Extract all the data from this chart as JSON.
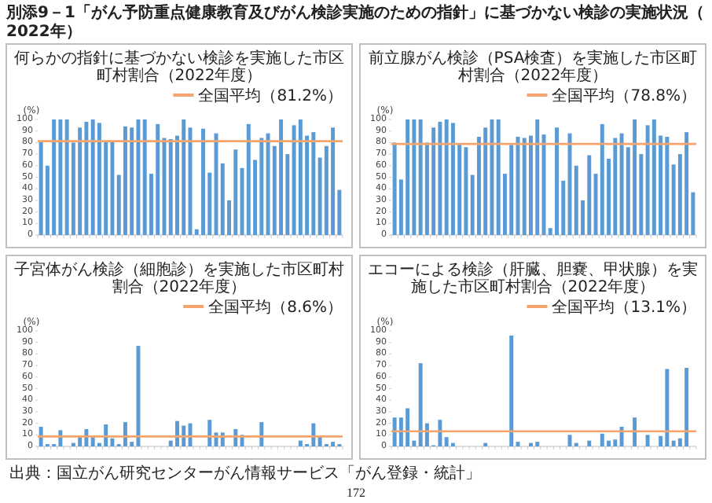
{
  "chart_data": [
    {
      "type": "bar",
      "title": "何らかの指針に基づかない検診を実施した市区町村割合（2022年度）",
      "ylabel": "(%)",
      "color": "#5b9bd5",
      "legend": "top right",
      "annotations": [
        "別添9－1「がん予防重点健康教育及びがん検診実施のための指針」に基づかない検診の実施状況（2022年）",
        "出典：国立がん研究センターがん情報サービス「がん登録・統計」",
        "172"
      ],
      "categories": [
        null,
        null,
        null,
        null,
        null,
        null,
        null,
        null,
        null,
        null,
        null,
        null,
        null,
        null,
        null,
        null,
        null,
        null,
        null,
        null,
        null,
        null,
        null,
        null,
        null,
        null,
        null,
        null,
        null,
        null,
        null,
        null,
        null,
        null,
        null,
        null,
        null,
        null,
        null,
        null,
        null,
        null,
        null,
        null,
        null,
        null,
        null
      ],
      "values": [
        81,
        60,
        100,
        100,
        100,
        80,
        93,
        98,
        100,
        97,
        81,
        81,
        52,
        94,
        93,
        100,
        100,
        53,
        96,
        84,
        83,
        86,
        100,
        93,
        5,
        92,
        54,
        88,
        62,
        30,
        74,
        58,
        96,
        65,
        84,
        88,
        77,
        100,
        70,
        95,
        100,
        86,
        89,
        67,
        77,
        93,
        39
      ],
      "ylim": [
        0,
        100
      ],
      "yticks": [
        0,
        10,
        20,
        30,
        40,
        50,
        60,
        70,
        80,
        90,
        100
      ],
      "ref_lines": [
        {
          "axis": "y",
          "value": 81.2,
          "label": "全国平均（81.2%）",
          "color": "#f6a46b"
        }
      ]
    },
    {
      "type": "bar",
      "title": "前立腺がん検診（PSA検査）を実施した市区町村割合（2022年度）",
      "ylabel": "(%)",
      "color": "#5b9bd5",
      "legend": "top right",
      "categories": [
        null,
        null,
        null,
        null,
        null,
        null,
        null,
        null,
        null,
        null,
        null,
        null,
        null,
        null,
        null,
        null,
        null,
        null,
        null,
        null,
        null,
        null,
        null,
        null,
        null,
        null,
        null,
        null,
        null,
        null,
        null,
        null,
        null,
        null,
        null,
        null,
        null,
        null,
        null,
        null,
        null,
        null,
        null,
        null,
        null,
        null,
        null
      ],
      "values": [
        80,
        48,
        100,
        100,
        100,
        80,
        93,
        98,
        100,
        97,
        79,
        76,
        52,
        85,
        93,
        100,
        100,
        53,
        78,
        85,
        84,
        86,
        100,
        87,
        6,
        93,
        47,
        88,
        60,
        30,
        69,
        53,
        96,
        66,
        84,
        88,
        76,
        100,
        70,
        95,
        100,
        86,
        85,
        61,
        70,
        89,
        37
      ],
      "ylim": [
        0,
        100
      ],
      "yticks": [
        0,
        10,
        20,
        30,
        40,
        50,
        60,
        70,
        80,
        90,
        100
      ],
      "ref_lines": [
        {
          "axis": "y",
          "value": 78.8,
          "label": "全国平均（78.8%）",
          "color": "#f6a46b"
        }
      ]
    },
    {
      "type": "bar",
      "title": "子宮体がん検診（細胞診）を実施した市区町村割合（2022年度）",
      "ylabel": "(%)",
      "color": "#5b9bd5",
      "legend": "top right",
      "categories": [
        null,
        null,
        null,
        null,
        null,
        null,
        null,
        null,
        null,
        null,
        null,
        null,
        null,
        null,
        null,
        null,
        null,
        null,
        null,
        null,
        null,
        null,
        null,
        null,
        null,
        null,
        null,
        null,
        null,
        null,
        null,
        null,
        null,
        null,
        null,
        null,
        null,
        null,
        null,
        null,
        null,
        null,
        null,
        null,
        null,
        null,
        null
      ],
      "values": [
        17,
        2,
        2,
        14,
        0,
        3,
        8,
        15,
        8,
        3,
        19,
        7,
        2,
        21,
        4,
        87,
        0,
        0,
        0,
        0,
        5,
        22,
        18,
        20,
        0,
        0,
        23,
        12,
        12,
        0,
        15,
        10,
        0,
        0,
        21,
        0,
        0,
        0,
        0,
        0,
        5,
        2,
        20,
        9,
        2,
        4,
        2
      ],
      "ylim": [
        0,
        100
      ],
      "yticks": [
        0,
        10,
        20,
        30,
        40,
        50,
        60,
        70,
        80,
        90,
        100
      ],
      "ref_lines": [
        {
          "axis": "y",
          "value": 8.6,
          "label": "全国平均（8.6%）",
          "color": "#f6a46b"
        }
      ]
    },
    {
      "type": "bar",
      "title": "エコーによる検診（肝臓、胆嚢、甲状腺）を実施した市区町村割合（2022年度）",
      "ylabel": "(%)",
      "color": "#5b9bd5",
      "legend": "top right",
      "categories": [
        null,
        null,
        null,
        null,
        null,
        null,
        null,
        null,
        null,
        null,
        null,
        null,
        null,
        null,
        null,
        null,
        null,
        null,
        null,
        null,
        null,
        null,
        null,
        null,
        null,
        null,
        null,
        null,
        null,
        null,
        null,
        null,
        null,
        null,
        null,
        null,
        null,
        null,
        null,
        null,
        null,
        null,
        null,
        null,
        null,
        null,
        null
      ],
      "values": [
        25,
        25,
        33,
        5,
        72,
        20,
        1,
        23,
        8,
        3,
        0,
        0,
        0,
        0,
        3,
        0,
        0,
        0,
        96,
        4,
        0,
        3,
        4,
        0,
        0,
        0,
        0,
        10,
        3,
        0,
        5,
        0,
        11,
        5,
        6,
        17,
        0,
        25,
        0,
        10,
        0,
        9,
        67,
        5,
        7,
        68,
        0
      ],
      "ylim": [
        0,
        100
      ],
      "yticks": [
        0,
        10,
        20,
        30,
        40,
        50,
        60,
        70,
        80,
        90,
        100
      ],
      "ref_lines": [
        {
          "axis": "y",
          "value": 13.1,
          "label": "全国平均（13.1%）",
          "color": "#f6a46b"
        }
      ]
    }
  ]
}
